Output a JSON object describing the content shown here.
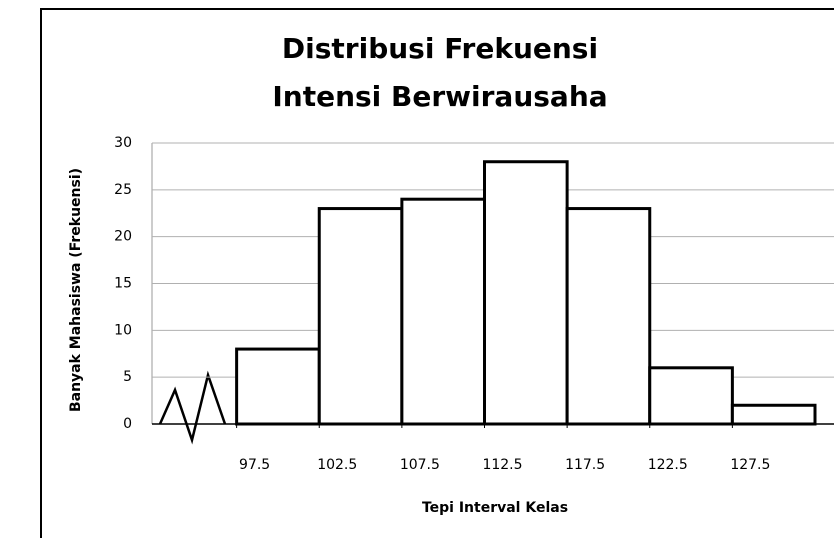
{
  "chart_data": {
    "type": "histogram",
    "title": [
      "Distribusi Frekuensi",
      "Intensi Berwirausaha"
    ],
    "x_label": "Tepi Interval Kelas",
    "y_label": "Banyak Mahasiswa (Frekuensi)",
    "bins": [
      97.5,
      102.5,
      107.5,
      112.5,
      117.5,
      122.5,
      127.5,
      132.5
    ],
    "values": [
      8,
      23,
      24,
      28,
      23,
      6,
      2
    ],
    "color": "#ffffff",
    "xlim": [
      92.5,
      132.5
    ],
    "xticks": [
      97.5,
      102.5,
      107.5,
      112.5,
      117.5,
      122.5,
      127.5
    ],
    "ylim": [
      0,
      30
    ],
    "yticks": [
      0,
      5,
      10,
      15,
      20,
      25,
      30
    ],
    "grid": true
  }
}
